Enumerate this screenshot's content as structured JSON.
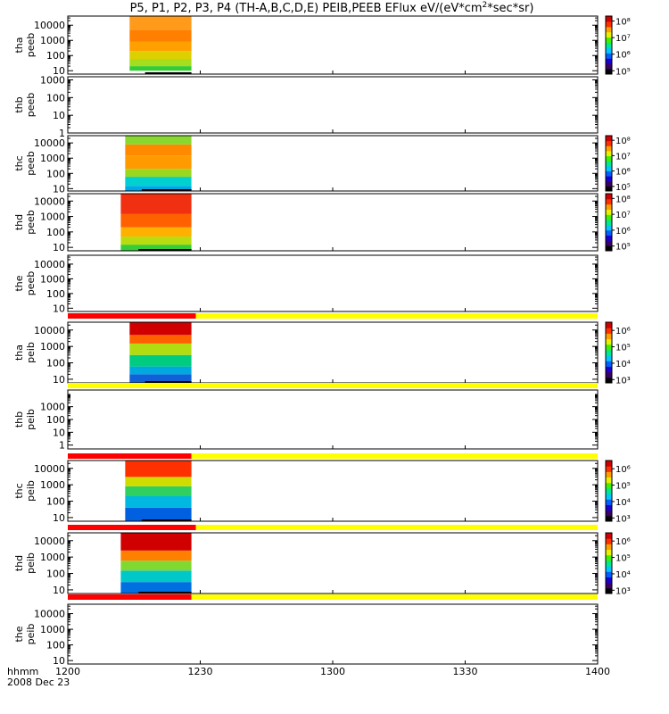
{
  "title": "P5, P1, P2, P3, P4 (TH-A,B,C,D,E) PEIB,PEEB EFlux eV/(eV*cm²*sec*sr)",
  "x_axis": {
    "label_top": "hhmm",
    "label_bottom": "2008 Dec 23",
    "ticks": [
      "1200",
      "1230",
      "1300",
      "1330",
      "1400"
    ]
  },
  "colors": {
    "state_red": "#ff0000",
    "state_yellow": "#ffff00",
    "frame": "#000000"
  },
  "chart_data": {
    "type": "heatmap",
    "x_unit": "minutes after 12:00 UT, 2008 Dec 23",
    "xlim": [
      0,
      120
    ],
    "scale_y": "log",
    "panels": [
      {
        "name": "tha peeb",
        "probe": "tha",
        "label": "peeb",
        "ylim": [
          6,
          40000
        ],
        "yticks": [
          {
            "v": 10,
            "t": "10"
          },
          {
            "v": 100,
            "t": "100"
          },
          {
            "v": 1000,
            "t": "1000"
          },
          {
            "v": 10000,
            "t": "10000"
          }
        ],
        "data_x": [
          14,
          28
        ],
        "bands": [
          [
            10,
            20,
            "#33cc33"
          ],
          [
            20,
            60,
            "#a6dd1c"
          ],
          [
            60,
            200,
            "#ddd000"
          ],
          [
            200,
            800,
            "#ffa000"
          ],
          [
            800,
            5000,
            "#ff8000"
          ],
          [
            5000,
            40000,
            "#ff9a1a"
          ]
        ],
        "colorbar": {
          "labels": [
            {
              "v": 5,
              "t": "10⁵"
            },
            {
              "v": 6,
              "t": "10⁶"
            },
            {
              "v": 7,
              "t": "10⁷"
            },
            {
              "v": 8,
              "t": "10⁸"
            }
          ],
          "range": [
            4.8,
            8.3
          ]
        }
      },
      {
        "name": "thb peeb",
        "probe": "thb",
        "label": "peeb",
        "ylim": [
          1,
          1500
        ],
        "yticks": [
          {
            "v": 1,
            "t": "1"
          },
          {
            "v": 10,
            "t": "10"
          },
          {
            "v": 100,
            "t": "100"
          },
          {
            "v": 1000,
            "t": "1000"
          }
        ],
        "data_x": null,
        "bands": [],
        "colorbar": null
      },
      {
        "name": "thc peeb",
        "probe": "thc",
        "label": "peeb",
        "ylim": [
          7,
          30000
        ],
        "yticks": [
          {
            "v": 10,
            "t": "10"
          },
          {
            "v": 100,
            "t": "100"
          },
          {
            "v": 1000,
            "t": "1000"
          },
          {
            "v": 10000,
            "t": "10000"
          }
        ],
        "data_x": [
          13,
          28
        ],
        "bands": [
          [
            7,
            15,
            "#00a8e8"
          ],
          [
            15,
            60,
            "#00d0d0"
          ],
          [
            60,
            200,
            "#9ad820"
          ],
          [
            200,
            1500,
            "#ff9a00"
          ],
          [
            1500,
            8000,
            "#ff8a00"
          ],
          [
            8000,
            30000,
            "#88d830"
          ]
        ],
        "colorbar": {
          "labels": [
            {
              "v": 5,
              "t": "10⁵"
            },
            {
              "v": 6,
              "t": "10⁶"
            },
            {
              "v": 7,
              "t": "10⁷"
            },
            {
              "v": 8,
              "t": "10⁸"
            }
          ],
          "range": [
            4.7,
            8.3
          ]
        }
      },
      {
        "name": "thd peeb",
        "probe": "thd",
        "label": "peeb",
        "ylim": [
          6,
          30000
        ],
        "yticks": [
          {
            "v": 10,
            "t": "10"
          },
          {
            "v": 100,
            "t": "100"
          },
          {
            "v": 1000,
            "t": "1000"
          },
          {
            "v": 10000,
            "t": "10000"
          }
        ],
        "data_x": [
          12,
          28
        ],
        "bands": [
          [
            6,
            15,
            "#38cc38"
          ],
          [
            15,
            50,
            "#b8dc10"
          ],
          [
            50,
            200,
            "#ffb000"
          ],
          [
            200,
            1500,
            "#ff6000"
          ],
          [
            1500,
            30000,
            "#f03010"
          ]
        ],
        "colorbar": {
          "labels": [
            {
              "v": 5,
              "t": "10⁵"
            },
            {
              "v": 6,
              "t": "10⁶"
            },
            {
              "v": 7,
              "t": "10⁷"
            },
            {
              "v": 8,
              "t": "10⁸"
            }
          ],
          "range": [
            4.7,
            8.3
          ]
        }
      },
      {
        "name": "the peeb",
        "probe": "the",
        "label": "peeb",
        "ylim": [
          6,
          40000
        ],
        "yticks": [
          {
            "v": 10,
            "t": "10"
          },
          {
            "v": 100,
            "t": "100"
          },
          {
            "v": 1000,
            "t": "1000"
          },
          {
            "v": 10000,
            "t": "10000"
          }
        ],
        "data_x": null,
        "bands": [],
        "colorbar": null
      },
      {
        "name": "tha peib",
        "probe": "tha",
        "label": "peib",
        "ylim": [
          6,
          30000
        ],
        "yticks": [
          {
            "v": 10,
            "t": "10"
          },
          {
            "v": 100,
            "t": "100"
          },
          {
            "v": 1000,
            "t": "1000"
          },
          {
            "v": 10000,
            "t": "10000"
          }
        ],
        "data_x": [
          14,
          28
        ],
        "bands": [
          [
            6,
            20,
            "#1060d8"
          ],
          [
            20,
            60,
            "#00a8e0"
          ],
          [
            60,
            300,
            "#00cc80"
          ],
          [
            300,
            1500,
            "#b0dc10"
          ],
          [
            1500,
            5000,
            "#ff6000"
          ],
          [
            5000,
            30000,
            "#d00000"
          ]
        ],
        "colorbar": {
          "labels": [
            {
              "v": 3,
              "t": "10³"
            },
            {
              "v": 4,
              "t": "10⁴"
            },
            {
              "v": 5,
              "t": "10⁵"
            },
            {
              "v": 6,
              "t": "10⁶"
            }
          ],
          "range": [
            2.8,
            6.5
          ]
        }
      },
      {
        "name": "thb peib",
        "probe": "thb",
        "label": "peib",
        "ylim": [
          0.5,
          20000
        ],
        "yticks": [
          {
            "v": 1,
            "t": "1"
          },
          {
            "v": 10,
            "t": "10"
          },
          {
            "v": 100,
            "t": "100"
          },
          {
            "v": 1000,
            "t": "1000"
          }
        ],
        "data_x": null,
        "bands": [],
        "colorbar": null
      },
      {
        "name": "thc peib",
        "probe": "thc",
        "label": "peib",
        "ylim": [
          6,
          30000
        ],
        "yticks": [
          {
            "v": 10,
            "t": "10"
          },
          {
            "v": 100,
            "t": "100"
          },
          {
            "v": 1000,
            "t": "1000"
          },
          {
            "v": 10000,
            "t": "10000"
          }
        ],
        "data_x": [
          13,
          28
        ],
        "bands": [
          [
            6,
            40,
            "#0060e0"
          ],
          [
            40,
            200,
            "#00b8e0"
          ],
          [
            200,
            800,
            "#30d060"
          ],
          [
            800,
            3000,
            "#d0dc00"
          ],
          [
            3000,
            30000,
            "#ff3000"
          ]
        ],
        "colorbar": {
          "labels": [
            {
              "v": 3,
              "t": "10³"
            },
            {
              "v": 4,
              "t": "10⁴"
            },
            {
              "v": 5,
              "t": "10⁵"
            },
            {
              "v": 6,
              "t": "10⁶"
            }
          ],
          "range": [
            2.8,
            6.5
          ]
        }
      },
      {
        "name": "thd peib",
        "probe": "thd",
        "label": "peib",
        "ylim": [
          6,
          30000
        ],
        "yticks": [
          {
            "v": 10,
            "t": "10"
          },
          {
            "v": 100,
            "t": "100"
          },
          {
            "v": 1000,
            "t": "1000"
          },
          {
            "v": 10000,
            "t": "10000"
          }
        ],
        "data_x": [
          12,
          28
        ],
        "bands": [
          [
            6,
            30,
            "#0070e0"
          ],
          [
            30,
            150,
            "#00c8c8"
          ],
          [
            150,
            600,
            "#80d830"
          ],
          [
            600,
            2500,
            "#ff8000"
          ],
          [
            2500,
            30000,
            "#d00000"
          ]
        ],
        "colorbar": {
          "labels": [
            {
              "v": 3,
              "t": "10³"
            },
            {
              "v": 4,
              "t": "10⁴"
            },
            {
              "v": 5,
              "t": "10⁵"
            },
            {
              "v": 6,
              "t": "10⁶"
            }
          ],
          "range": [
            2.8,
            6.5
          ]
        }
      },
      {
        "name": "the peib",
        "probe": "the",
        "label": "peib",
        "ylim": [
          6,
          40000
        ],
        "yticks": [
          {
            "v": 10,
            "t": "10"
          },
          {
            "v": 100,
            "t": "100"
          },
          {
            "v": 1000,
            "t": "1000"
          },
          {
            "v": 10000,
            "t": "10000"
          }
        ],
        "data_x": null,
        "bands": [],
        "colorbar": null
      }
    ],
    "state_bars": [
      {
        "above_panel": 5,
        "segments": [
          [
            0,
            29,
            "red"
          ],
          [
            29,
            120,
            "yellow"
          ]
        ]
      },
      {
        "above_panel": 6,
        "segments": [
          [
            0,
            120,
            "yellow"
          ]
        ]
      },
      {
        "above_panel": 7,
        "segments": [
          [
            0,
            28,
            "red"
          ],
          [
            28,
            120,
            "yellow"
          ]
        ]
      },
      {
        "above_panel": 8,
        "segments": [
          [
            0,
            29,
            "red"
          ],
          [
            29,
            120,
            "yellow"
          ]
        ]
      },
      {
        "above_panel": 9,
        "segments": [
          [
            0,
            28,
            "red"
          ],
          [
            28,
            120,
            "yellow"
          ]
        ]
      }
    ]
  }
}
